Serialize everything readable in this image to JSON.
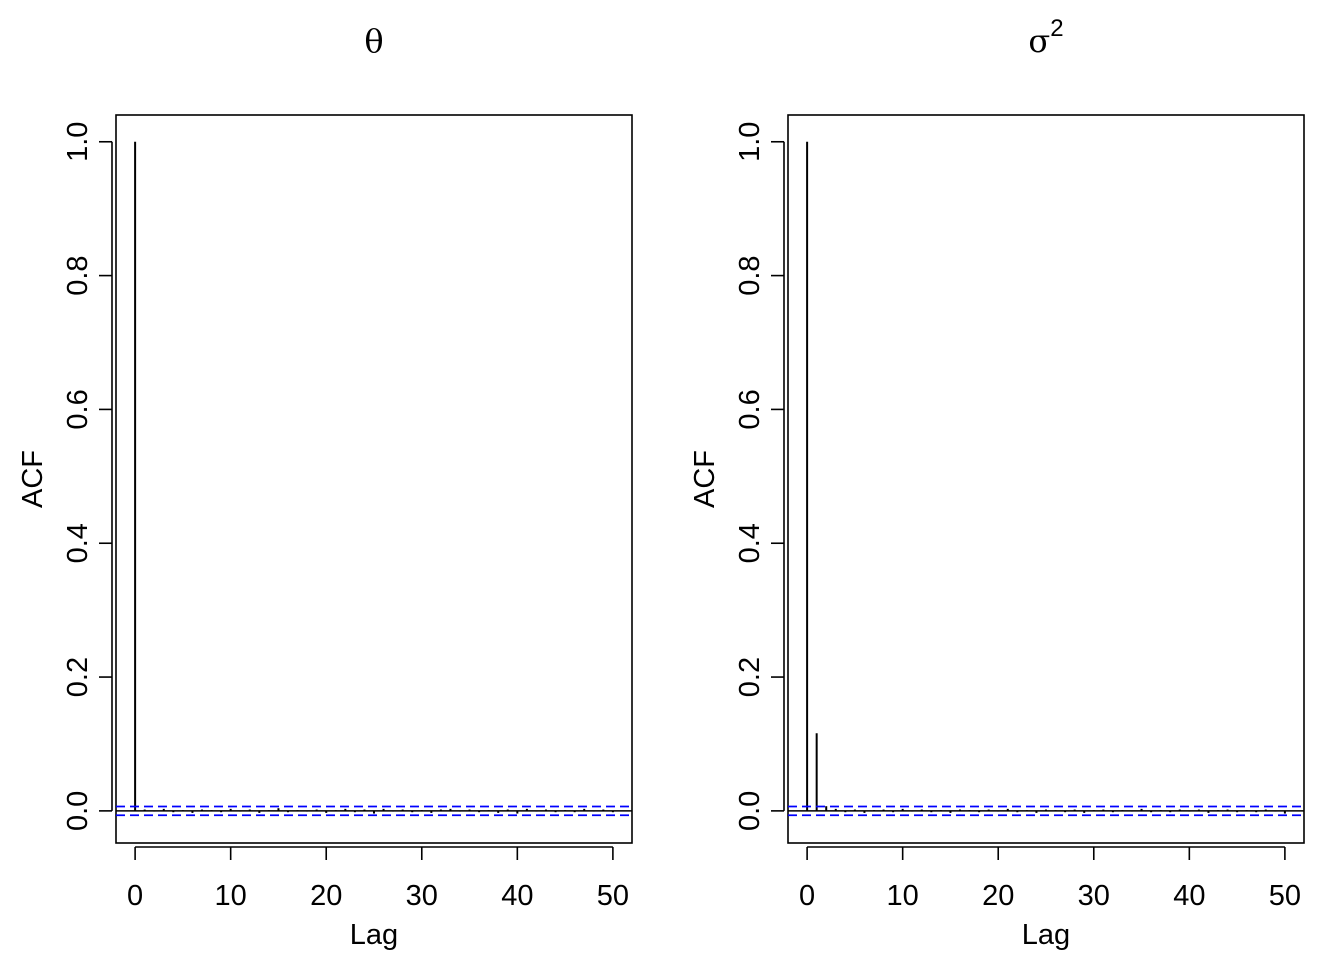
{
  "chart_data": [
    {
      "type": "bar",
      "title": "θ",
      "title_superscript": "",
      "xlabel": "Lag",
      "ylabel": "ACF",
      "xlim": [
        -2,
        52
      ],
      "ylim": [
        -0.048,
        1.04
      ],
      "xticks": [
        0,
        10,
        20,
        30,
        40,
        50
      ],
      "xtick_labels": [
        "0",
        "10",
        "20",
        "30",
        "40",
        "50"
      ],
      "yticks": [
        0.0,
        0.2,
        0.4,
        0.6,
        0.8,
        1.0
      ],
      "ytick_labels": [
        "0.0",
        "0.2",
        "0.4",
        "0.6",
        "0.8",
        "1.0"
      ],
      "grid": false,
      "lags": [
        0,
        1,
        2,
        3,
        4,
        5,
        6,
        7,
        8,
        9,
        10,
        11,
        12,
        13,
        14,
        15,
        16,
        17,
        18,
        19,
        20,
        21,
        22,
        23,
        24,
        25,
        26,
        27,
        28,
        29,
        30,
        31,
        32,
        33,
        34,
        35,
        36,
        37,
        38,
        39,
        40,
        41,
        42,
        43,
        44,
        45,
        46,
        47,
        48,
        49,
        50
      ],
      "values": [
        1.0,
        0.002,
        -0.001,
        0.003,
        -0.002,
        0.001,
        -0.003,
        0.002,
        0.001,
        -0.002,
        0.003,
        -0.001,
        0.002,
        -0.003,
        0.001,
        0.004,
        -0.002,
        0.001,
        -0.001,
        0.002,
        -0.003,
        0.001,
        0.003,
        -0.002,
        0.002,
        -0.004,
        0.003,
        -0.001,
        0.002,
        -0.002,
        0.001,
        -0.003,
        0.002,
        0.003,
        -0.001,
        0.002,
        -0.002,
        0.001,
        -0.003,
        0.002,
        -0.004,
        0.003,
        -0.001,
        0.002,
        -0.002,
        0.001,
        -0.002,
        0.003,
        -0.001,
        0.002,
        -0.002
      ],
      "conf_limit": 0.0065,
      "conf_color": "#0000ff",
      "line_color": "#000000"
    },
    {
      "type": "bar",
      "title": "σ",
      "title_superscript": "2",
      "xlabel": "Lag",
      "ylabel": "ACF",
      "xlim": [
        -2,
        52
      ],
      "ylim": [
        -0.048,
        1.04
      ],
      "xticks": [
        0,
        10,
        20,
        30,
        40,
        50
      ],
      "xtick_labels": [
        "0",
        "10",
        "20",
        "30",
        "40",
        "50"
      ],
      "yticks": [
        0.0,
        0.2,
        0.4,
        0.6,
        0.8,
        1.0
      ],
      "ytick_labels": [
        "0.0",
        "0.2",
        "0.4",
        "0.6",
        "0.8",
        "1.0"
      ],
      "grid": false,
      "lags": [
        0,
        1,
        2,
        3,
        4,
        5,
        6,
        7,
        8,
        9,
        10,
        11,
        12,
        13,
        14,
        15,
        16,
        17,
        18,
        19,
        20,
        21,
        22,
        23,
        24,
        25,
        26,
        27,
        28,
        29,
        30,
        31,
        32,
        33,
        34,
        35,
        36,
        37,
        38,
        39,
        40,
        41,
        42,
        43,
        44,
        45,
        46,
        47,
        48,
        49,
        50
      ],
      "values": [
        1.0,
        0.116,
        0.007,
        0.003,
        -0.002,
        0.002,
        -0.003,
        0.001,
        0.002,
        -0.002,
        0.003,
        -0.001,
        0.002,
        -0.002,
        0.001,
        -0.003,
        0.002,
        0.001,
        -0.002,
        0.002,
        -0.001,
        0.003,
        -0.002,
        0.001,
        -0.003,
        0.002,
        0.001,
        -0.002,
        0.002,
        -0.003,
        0.001,
        0.002,
        -0.002,
        0.001,
        -0.001,
        0.003,
        -0.002,
        0.001,
        -0.002,
        0.002,
        -0.001,
        0.002,
        -0.003,
        0.001,
        0.002,
        -0.002,
        0.001,
        -0.002,
        0.002,
        -0.001,
        -0.004
      ],
      "conf_limit": 0.0065,
      "conf_color": "#0000ff",
      "line_color": "#000000"
    }
  ]
}
